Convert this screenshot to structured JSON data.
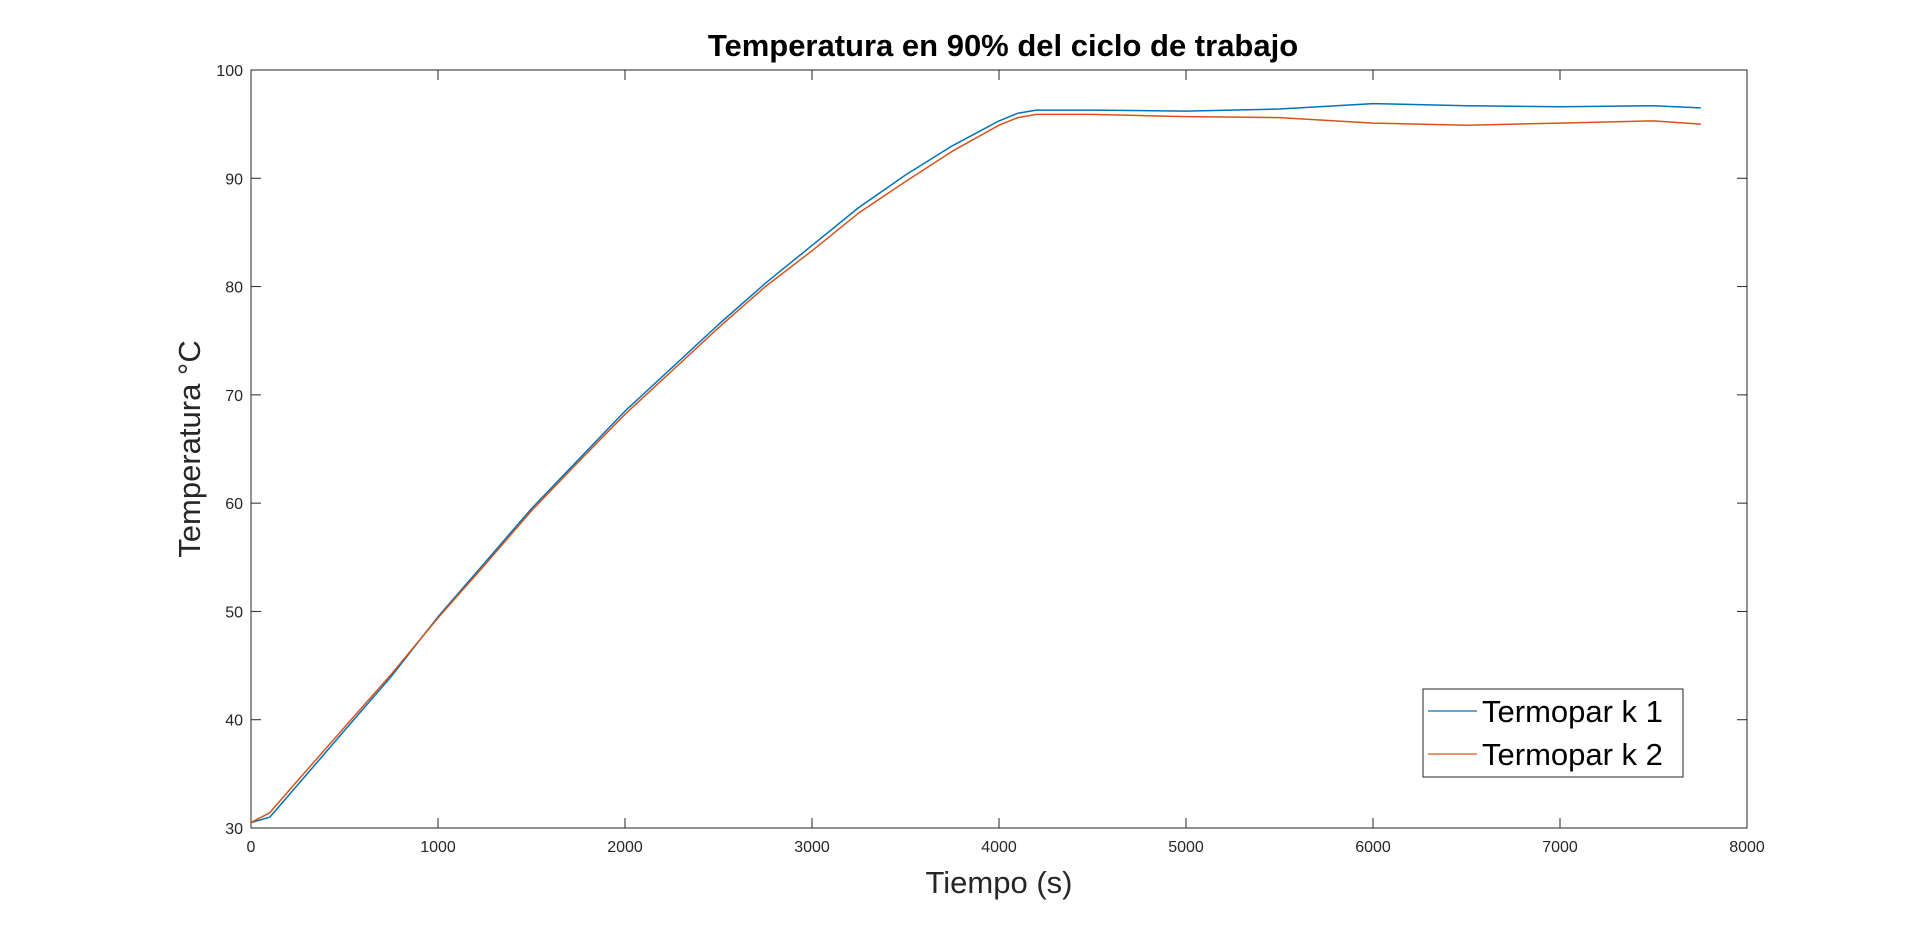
{
  "chart_data": {
    "type": "line",
    "title": "Temperatura en 90% del ciclo de trabajo",
    "xlabel": "Tiempo (s)",
    "ylabel": "Temperatura °C",
    "xlim": [
      0,
      8000
    ],
    "ylim": [
      30,
      100
    ],
    "xticks": [
      0,
      1000,
      2000,
      3000,
      4000,
      5000,
      6000,
      7000,
      8000
    ],
    "yticks": [
      30,
      40,
      50,
      60,
      70,
      80,
      90,
      100
    ],
    "grid": false,
    "legend_position": "bottom-right",
    "series": [
      {
        "name": "Termopar k 1",
        "color": "#0072BD",
        "x": [
          0,
          100,
          250,
          500,
          750,
          1000,
          1250,
          1500,
          1750,
          2000,
          2250,
          2500,
          2750,
          3000,
          3250,
          3500,
          3750,
          4000,
          4100,
          4200,
          4500,
          5000,
          5500,
          6000,
          6500,
          7000,
          7500,
          7750
        ],
        "y": [
          30.5,
          31.0,
          34.0,
          39.0,
          44.0,
          49.5,
          54.5,
          59.5,
          64.0,
          68.5,
          72.5,
          76.5,
          80.3,
          83.8,
          87.3,
          90.3,
          93.0,
          95.3,
          96.0,
          96.3,
          96.3,
          96.2,
          96.4,
          96.9,
          96.7,
          96.6,
          96.7,
          96.5
        ]
      },
      {
        "name": "Termopar k 2",
        "color": "#D95319",
        "x": [
          0,
          100,
          250,
          500,
          750,
          1000,
          1250,
          1500,
          1750,
          2000,
          2250,
          2500,
          2750,
          3000,
          3250,
          3500,
          3750,
          4000,
          4100,
          4200,
          4500,
          5000,
          5500,
          6000,
          6500,
          7000,
          7500,
          7750
        ],
        "y": [
          30.5,
          31.4,
          34.4,
          39.3,
          44.2,
          49.4,
          54.3,
          59.3,
          63.8,
          68.2,
          72.2,
          76.2,
          80.0,
          83.3,
          86.8,
          89.7,
          92.5,
          94.9,
          95.6,
          95.9,
          95.9,
          95.7,
          95.6,
          95.1,
          94.9,
          95.1,
          95.3,
          95.0
        ]
      }
    ]
  }
}
